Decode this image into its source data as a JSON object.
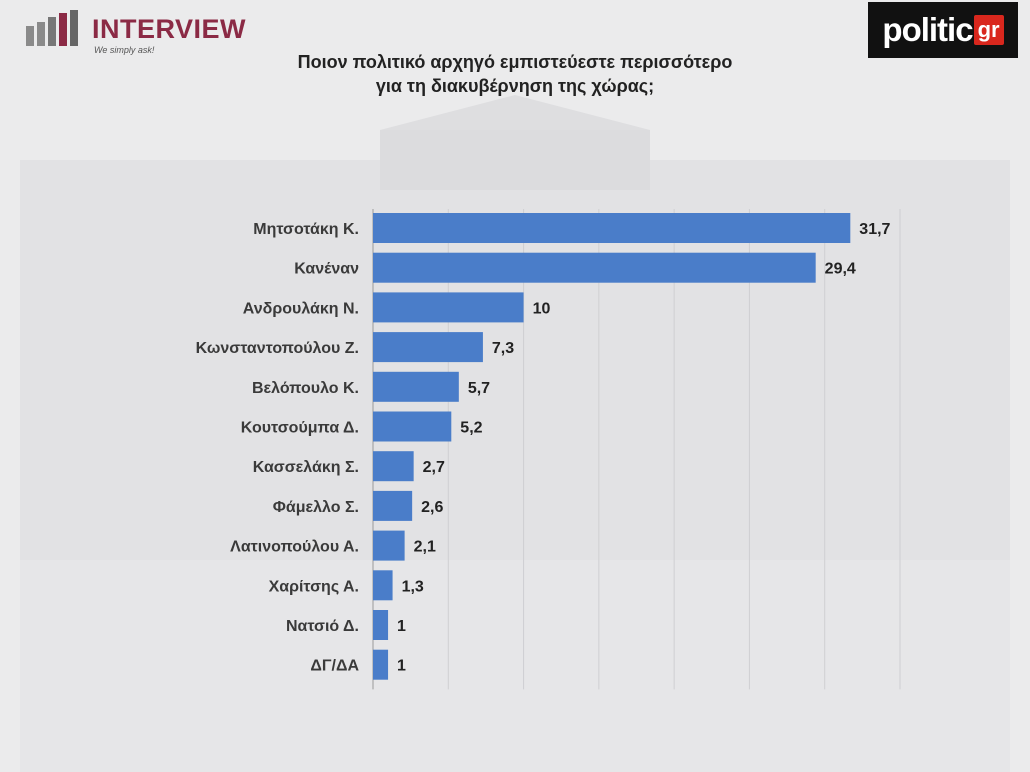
{
  "header": {
    "brand_name": "INTERVIEW",
    "brand_tagline": "We simply ask!",
    "partner_name": "politic",
    "partner_suffix": "gr",
    "title_line1": "Ποιον πολιτικό αρχηγό εμπιστεύεστε περισσότερο",
    "title_line2": "για τη διακυβέρνηση της χώρας;"
  },
  "colors": {
    "bar": "#4a7dc9",
    "brand": "#8b2a45",
    "partner_red": "#d9271d"
  },
  "chart_data": {
    "type": "bar",
    "orientation": "horizontal",
    "title": "Ποιον πολιτικό αρχηγό εμπιστεύεστε περισσότερο για τη διακυβέρνηση της χώρας;",
    "xlabel": "",
    "ylabel": "",
    "xlim": [
      0,
      35
    ],
    "grid": true,
    "legend": "none",
    "categories": [
      "Μητσοτάκη Κ.",
      "Κανέναν",
      "Ανδρουλάκη Ν.",
      "Κωνσταντοπούλου Ζ.",
      "Βελόπουλο Κ.",
      "Κουτσούμπα Δ.",
      "Κασσελάκη Σ.",
      "Φάμελλο Σ.",
      "Λατινοπούλου Α.",
      "Χαρίτσης Α.",
      "Νατσιό Δ.",
      "ΔΓ/ΔΑ"
    ],
    "values": [
      31.7,
      29.4,
      10,
      7.3,
      5.7,
      5.2,
      2.7,
      2.6,
      2.1,
      1.3,
      1,
      1
    ],
    "value_labels": [
      "31,7",
      "29,4",
      "10",
      "7,3",
      "5,7",
      "5,2",
      "2,7",
      "2,6",
      "2,1",
      "1,3",
      "1",
      "1"
    ]
  }
}
